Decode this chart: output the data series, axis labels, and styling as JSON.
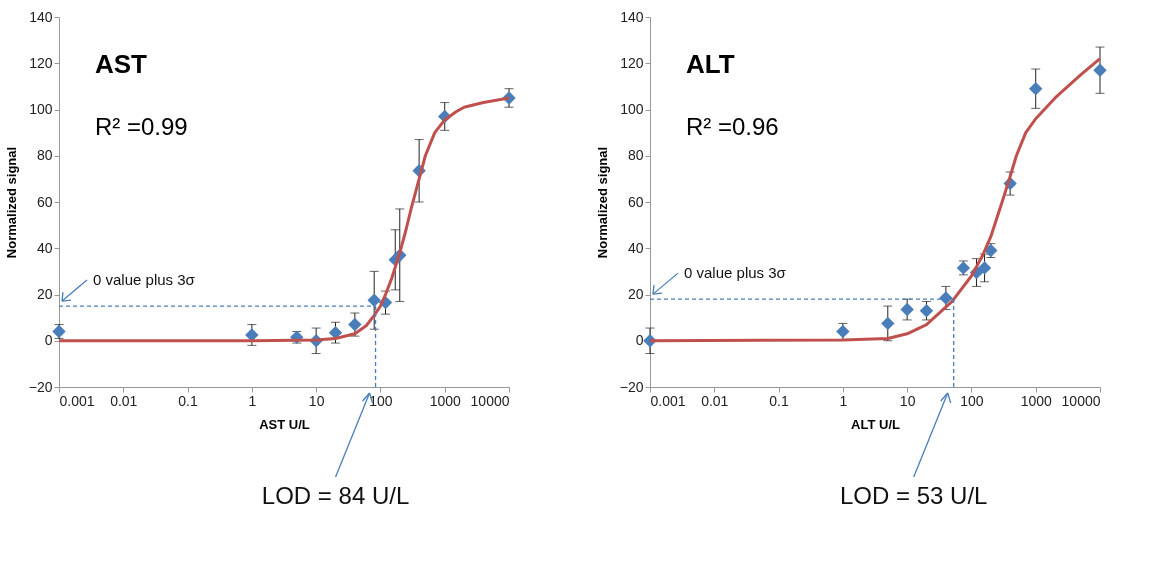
{
  "chart_data": [
    {
      "type": "scatter",
      "title": "AST",
      "xlabel": "AST U/L",
      "ylabel": "Normalized signal",
      "log": "x",
      "grid": false,
      "marker": "diamond",
      "xlim": [
        0.001,
        10000
      ],
      "xticks": [
        0.001,
        0.01,
        0.1,
        1,
        10,
        100,
        1000,
        10000
      ],
      "ylim": [
        -20,
        140
      ],
      "yticks": [
        -20,
        0,
        20,
        40,
        60,
        80,
        100,
        120,
        140
      ],
      "annotations": [
        "R² =0.99"
      ],
      "ref_lines": [
        {
          "axis": "y",
          "value": 15,
          "label": "0 value plus 3σ",
          "color": "#4a7ebb",
          "line_style": "dashed"
        },
        {
          "axis": "x",
          "value": 84,
          "label": "LOD = 84 U/L",
          "color": "#4a7ebb",
          "line_style": "dashed"
        }
      ],
      "series": [
        {
          "color": "#4a7ebb",
          "x": [
            0.001,
            1,
            5,
            10,
            20,
            40,
            80,
            120,
            170,
            200,
            400,
            1000,
            10000
          ],
          "values": [
            4,
            2.5,
            1.5,
            0,
            3.5,
            7,
            17.5,
            16.5,
            35,
            37,
            73.5,
            97,
            105
          ],
          "errors": [
            3,
            4.5,
            2.5,
            5.5,
            4.5,
            5,
            12.5,
            5,
            13,
            20,
            13.5,
            6,
            4
          ]
        },
        {
          "type": "line",
          "marker": "none",
          "color": "#c0504d",
          "x": [
            0.001,
            1,
            10,
            20,
            40,
            60,
            80,
            100,
            120,
            150,
            200,
            250,
            300,
            400,
            500,
            700,
            1000,
            1500,
            2000,
            4000,
            10000
          ],
          "values": [
            0,
            0,
            0.3,
            1,
            3,
            6.5,
            11,
            15,
            20,
            27,
            38,
            48,
            57,
            70,
            80,
            90,
            95.5,
            99,
            101,
            103,
            105
          ]
        }
      ]
    },
    {
      "type": "scatter",
      "title": "ALT",
      "xlabel": "ALT U/L",
      "ylabel": "Normalized signal",
      "log": "x",
      "grid": false,
      "marker": "diamond",
      "xlim": [
        0.001,
        10000
      ],
      "xticks": [
        0.001,
        0.01,
        0.1,
        1,
        10,
        100,
        1000,
        10000
      ],
      "ylim": [
        -20,
        140
      ],
      "yticks": [
        -20,
        0,
        20,
        40,
        60,
        80,
        100,
        120,
        140
      ],
      "annotations": [
        "R² =0.96"
      ],
      "ref_lines": [
        {
          "axis": "y",
          "value": 18,
          "label": "0 value plus 3σ",
          "color": "#4a7ebb",
          "line_style": "dashed"
        },
        {
          "axis": "x",
          "value": 53,
          "label": "LOD = 53 U/L",
          "color": "#4a7ebb",
          "line_style": "dashed"
        }
      ],
      "series": [
        {
          "color": "#4a7ebb",
          "x": [
            0.001,
            1,
            5,
            10,
            20,
            40,
            75,
            120,
            160,
            200,
            400,
            1000,
            10000
          ],
          "values": [
            0,
            4,
            7.5,
            13.5,
            13,
            18.5,
            31.5,
            29.5,
            31.5,
            39,
            68,
            109,
            117
          ],
          "errors": [
            5.5,
            3.5,
            7.5,
            4.5,
            4,
            5,
            3,
            6,
            6,
            3,
            5,
            8.5,
            10
          ]
        },
        {
          "type": "line",
          "marker": "none",
          "color": "#c0504d",
          "x": [
            0.001,
            1,
            5,
            10,
            20,
            50,
            100,
            150,
            200,
            300,
            400,
            500,
            700,
            1000,
            2000,
            5000,
            10000
          ],
          "values": [
            0,
            0.3,
            1,
            3,
            7,
            17,
            28,
            37,
            45,
            60,
            71,
            80,
            90,
            96,
            105,
            115,
            122
          ]
        }
      ]
    }
  ]
}
